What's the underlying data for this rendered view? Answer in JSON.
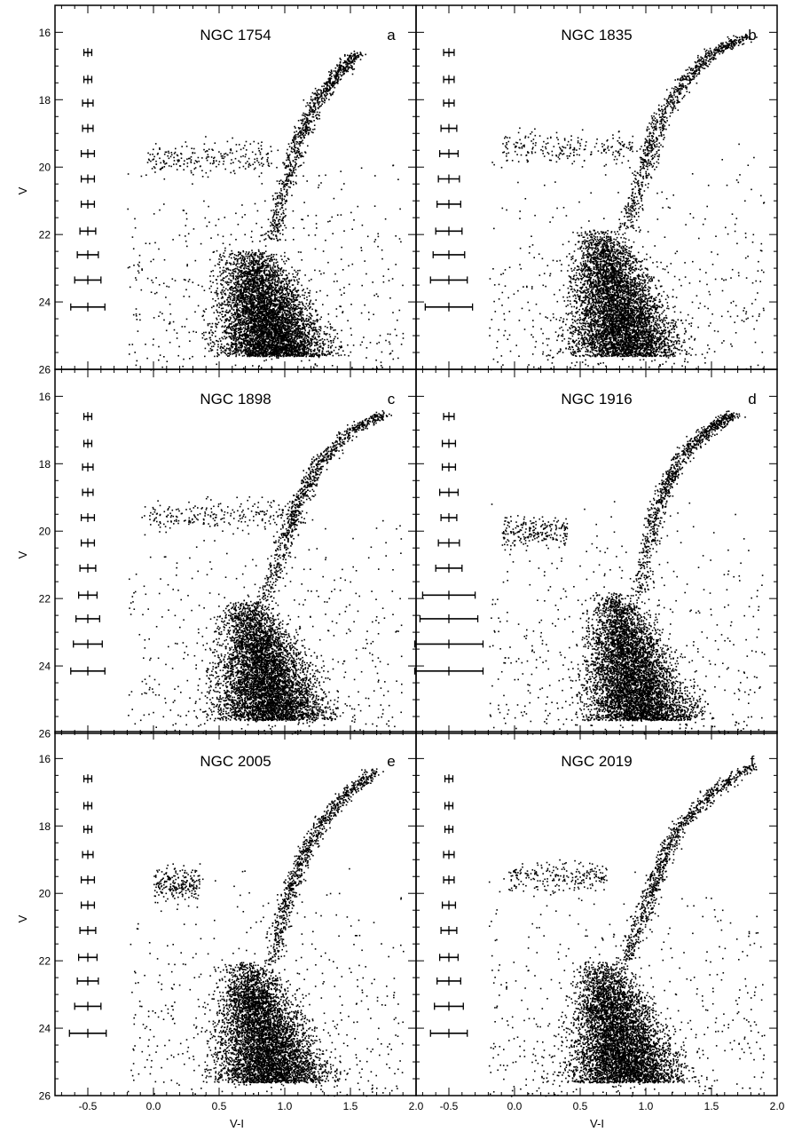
{
  "x_axis_label": "V-I",
  "y_axis_label": "V",
  "chart_data": [
    {
      "type": "scatter",
      "title": "NGC 1754",
      "panel_label": "a",
      "xlabel": "V-I",
      "ylabel": "V",
      "xlim": [
        -0.75,
        2.0
      ],
      "ylim": [
        26,
        15.2
      ],
      "y_inverted": true,
      "xticks": [
        "-0.5",
        "0.0",
        "0.5",
        "1.0",
        "1.5",
        "2.0"
      ],
      "yticks": [
        "16",
        "18",
        "20",
        "22",
        "24",
        "26"
      ],
      "features": {
        "main_sequence": {
          "vi_center": 0.8,
          "v_range": [
            22.4,
            25.6
          ]
        },
        "red_giant_branch": [
          [
            0.9,
            22.2
          ],
          [
            1.0,
            20.5
          ],
          [
            1.1,
            19.2
          ],
          [
            1.25,
            18.0
          ],
          [
            1.4,
            17.2
          ],
          [
            1.55,
            16.6
          ]
        ],
        "horizontal_branch": {
          "vi_range": [
            -0.05,
            0.9
          ],
          "v_center": 19.7
        }
      },
      "error_bars": [
        {
          "v": 16.6,
          "xerr": 0.03
        },
        {
          "v": 17.4,
          "xerr": 0.03
        },
        {
          "v": 18.1,
          "xerr": 0.04
        },
        {
          "v": 18.85,
          "xerr": 0.04
        },
        {
          "v": 19.6,
          "xerr": 0.05
        },
        {
          "v": 20.35,
          "xerr": 0.05
        },
        {
          "v": 21.1,
          "xerr": 0.05
        },
        {
          "v": 21.9,
          "xerr": 0.06
        },
        {
          "v": 22.6,
          "xerr": 0.08
        },
        {
          "v": 23.35,
          "xerr": 0.1
        },
        {
          "v": 24.15,
          "xerr": 0.13
        }
      ]
    },
    {
      "type": "scatter",
      "title": "NGC 1835",
      "panel_label": "b",
      "xlabel": "V-I",
      "ylabel": "V",
      "xlim": [
        -0.75,
        2.0
      ],
      "ylim": [
        26,
        15.2
      ],
      "y_inverted": true,
      "xticks": [
        "-0.5",
        "0.0",
        "0.5",
        "1.0",
        "1.5",
        "2.0"
      ],
      "yticks": [
        "16",
        "18",
        "20",
        "22",
        "24",
        "26"
      ],
      "features": {
        "main_sequence": {
          "vi_center": 0.75,
          "v_range": [
            21.8,
            25.6
          ]
        },
        "red_giant_branch": [
          [
            0.85,
            21.8
          ],
          [
            1.0,
            19.8
          ],
          [
            1.1,
            18.6
          ],
          [
            1.3,
            17.4
          ],
          [
            1.5,
            16.6
          ],
          [
            1.75,
            16.1
          ]
        ],
        "horizontal_branch": {
          "vi_range": [
            -0.1,
            0.9
          ],
          "v_center": 19.4
        }
      },
      "error_bars": [
        {
          "v": 16.6,
          "xerr": 0.04
        },
        {
          "v": 17.4,
          "xerr": 0.04
        },
        {
          "v": 18.1,
          "xerr": 0.04
        },
        {
          "v": 18.85,
          "xerr": 0.06
        },
        {
          "v": 19.6,
          "xerr": 0.07
        },
        {
          "v": 20.35,
          "xerr": 0.08
        },
        {
          "v": 21.1,
          "xerr": 0.09
        },
        {
          "v": 21.9,
          "xerr": 0.1
        },
        {
          "v": 22.6,
          "xerr": 0.12
        },
        {
          "v": 23.35,
          "xerr": 0.14
        },
        {
          "v": 24.15,
          "xerr": 0.18
        }
      ]
    },
    {
      "type": "scatter",
      "title": "NGC 1898",
      "panel_label": "c",
      "xlabel": "V-I",
      "ylabel": "V",
      "xlim": [
        -0.75,
        2.0
      ],
      "ylim": [
        26,
        15.2
      ],
      "y_inverted": true,
      "xticks": [
        "-0.5",
        "0.0",
        "0.5",
        "1.0",
        "1.5",
        "2.0"
      ],
      "yticks": [
        "16",
        "18",
        "20",
        "22",
        "24",
        "26"
      ],
      "features": {
        "main_sequence": {
          "vi_center": 0.8,
          "v_range": [
            22.0,
            25.6
          ]
        },
        "red_giant_branch": [
          [
            0.85,
            22.0
          ],
          [
            1.0,
            20.3
          ],
          [
            1.1,
            19.1
          ],
          [
            1.25,
            18.0
          ],
          [
            1.5,
            17.0
          ],
          [
            1.75,
            16.5
          ]
        ],
        "horizontal_branch": {
          "vi_range": [
            -0.1,
            1.0
          ],
          "v_center": 19.5
        }
      },
      "error_bars": [
        {
          "v": 16.6,
          "xerr": 0.03
        },
        {
          "v": 17.4,
          "xerr": 0.03
        },
        {
          "v": 18.1,
          "xerr": 0.04
        },
        {
          "v": 18.85,
          "xerr": 0.04
        },
        {
          "v": 19.6,
          "xerr": 0.05
        },
        {
          "v": 20.35,
          "xerr": 0.05
        },
        {
          "v": 21.1,
          "xerr": 0.06
        },
        {
          "v": 21.9,
          "xerr": 0.07
        },
        {
          "v": 22.6,
          "xerr": 0.09
        },
        {
          "v": 23.35,
          "xerr": 0.11
        },
        {
          "v": 24.15,
          "xerr": 0.13
        }
      ]
    },
    {
      "type": "scatter",
      "title": "NGC 1916",
      "panel_label": "d",
      "xlabel": "V-I",
      "ylabel": "V",
      "xlim": [
        -0.75,
        2.0
      ],
      "ylim": [
        26,
        15.2
      ],
      "y_inverted": true,
      "xticks": [
        "-0.5",
        "0.0",
        "0.5",
        "1.0",
        "1.5",
        "2.0"
      ],
      "yticks": [
        "16",
        "18",
        "20",
        "22",
        "24",
        "26"
      ],
      "features": {
        "main_sequence": {
          "vi_center": 0.85,
          "v_range": [
            21.8,
            25.6
          ]
        },
        "red_giant_branch": [
          [
            0.95,
            21.8
          ],
          [
            1.05,
            19.8
          ],
          [
            1.15,
            18.6
          ],
          [
            1.3,
            17.6
          ],
          [
            1.5,
            16.9
          ],
          [
            1.65,
            16.5
          ]
        ],
        "horizontal_branch": {
          "vi_range": [
            -0.1,
            0.4
          ],
          "v_center": 20.0
        }
      },
      "error_bars": [
        {
          "v": 16.6,
          "xerr": 0.04
        },
        {
          "v": 17.4,
          "xerr": 0.05
        },
        {
          "v": 18.1,
          "xerr": 0.05
        },
        {
          "v": 18.85,
          "xerr": 0.07
        },
        {
          "v": 19.6,
          "xerr": 0.06
        },
        {
          "v": 20.35,
          "xerr": 0.08
        },
        {
          "v": 21.1,
          "xerr": 0.1
        },
        {
          "v": 21.9,
          "xerr": 0.2
        },
        {
          "v": 22.6,
          "xerr": 0.22
        },
        {
          "v": 23.35,
          "xerr": 0.26
        },
        {
          "v": 24.15,
          "xerr": 0.26
        }
      ]
    },
    {
      "type": "scatter",
      "title": "NGC 2005",
      "panel_label": "e",
      "xlabel": "V-I",
      "ylabel": "V",
      "xlim": [
        -0.75,
        2.0
      ],
      "ylim": [
        26,
        15.2
      ],
      "y_inverted": true,
      "xticks": [
        "-0.5",
        "0.0",
        "0.5",
        "1.0",
        "1.5",
        "2.0"
      ],
      "yticks": [
        "16",
        "18",
        "20",
        "22",
        "24",
        "26"
      ],
      "features": {
        "main_sequence": {
          "vi_center": 0.8,
          "v_range": [
            22.0,
            25.6
          ]
        },
        "red_giant_branch": [
          [
            0.9,
            22.0
          ],
          [
            1.0,
            20.4
          ],
          [
            1.1,
            19.2
          ],
          [
            1.25,
            18.0
          ],
          [
            1.45,
            17.1
          ],
          [
            1.7,
            16.3
          ]
        ],
        "horizontal_branch": {
          "vi_range": [
            0.0,
            0.35
          ],
          "v_center": 19.7
        }
      },
      "error_bars": [
        {
          "v": 16.6,
          "xerr": 0.03
        },
        {
          "v": 17.4,
          "xerr": 0.03
        },
        {
          "v": 18.1,
          "xerr": 0.03
        },
        {
          "v": 18.85,
          "xerr": 0.04
        },
        {
          "v": 19.6,
          "xerr": 0.05
        },
        {
          "v": 20.35,
          "xerr": 0.05
        },
        {
          "v": 21.1,
          "xerr": 0.06
        },
        {
          "v": 21.9,
          "xerr": 0.07
        },
        {
          "v": 22.6,
          "xerr": 0.08
        },
        {
          "v": 23.35,
          "xerr": 0.1
        },
        {
          "v": 24.15,
          "xerr": 0.14
        }
      ]
    },
    {
      "type": "scatter",
      "title": "NGC 2019",
      "panel_label": "f",
      "xlabel": "V-I",
      "ylabel": "V",
      "xlim": [
        -0.75,
        2.0
      ],
      "ylim": [
        26,
        15.2
      ],
      "y_inverted": true,
      "xticks": [
        "-0.5",
        "0.0",
        "0.5",
        "1.0",
        "1.5",
        "2.0"
      ],
      "yticks": [
        "16",
        "18",
        "20",
        "22",
        "24",
        "26"
      ],
      "features": {
        "main_sequence": {
          "vi_center": 0.75,
          "v_range": [
            22.0,
            25.6
          ]
        },
        "red_giant_branch": [
          [
            0.85,
            22.0
          ],
          [
            1.0,
            20.3
          ],
          [
            1.1,
            19.2
          ],
          [
            1.25,
            18.0
          ],
          [
            1.5,
            17.0
          ],
          [
            1.8,
            16.2
          ]
        ],
        "horizontal_branch": {
          "vi_range": [
            -0.05,
            0.7
          ],
          "v_center": 19.5
        }
      },
      "error_bars": [
        {
          "v": 16.6,
          "xerr": 0.03
        },
        {
          "v": 17.4,
          "xerr": 0.03
        },
        {
          "v": 18.1,
          "xerr": 0.03
        },
        {
          "v": 18.85,
          "xerr": 0.04
        },
        {
          "v": 19.6,
          "xerr": 0.04
        },
        {
          "v": 20.35,
          "xerr": 0.05
        },
        {
          "v": 21.1,
          "xerr": 0.06
        },
        {
          "v": 21.9,
          "xerr": 0.07
        },
        {
          "v": 22.6,
          "xerr": 0.09
        },
        {
          "v": 23.35,
          "xerr": 0.11
        },
        {
          "v": 24.15,
          "xerr": 0.14
        }
      ]
    }
  ]
}
